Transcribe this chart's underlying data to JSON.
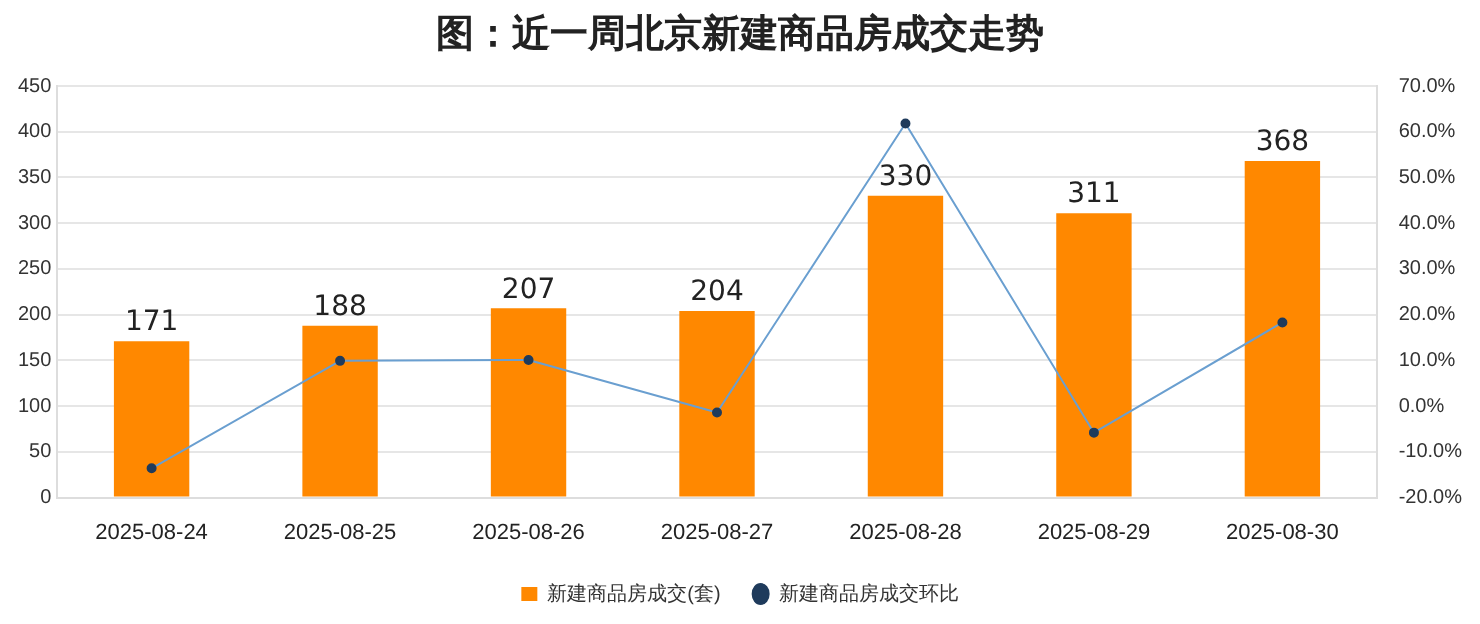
{
  "chart_data": {
    "type": "bar",
    "title": "图：近一周北京新建商品房成交走势",
    "categories": [
      "2025-08-24",
      "2025-08-25",
      "2025-08-26",
      "2025-08-27",
      "2025-08-28",
      "2025-08-29",
      "2025-08-30"
    ],
    "series": [
      {
        "name": "新建商品房成交(套)",
        "color": "#ff8800",
        "values": [
          171,
          188,
          207,
          204,
          330,
          311,
          368
        ],
        "value_labels": [
          "171",
          "188",
          "207",
          "204",
          "330",
          "311",
          "368"
        ]
      },
      {
        "name": "新建商品房成交环比",
        "type": "line",
        "axis": "y2",
        "color": "#6a9fd0",
        "marker": "circle",
        "values": [
          -13.6,
          9.9,
          10.1,
          -1.4,
          61.8,
          -5.8,
          18.3
        ]
      }
    ],
    "ylim": [
      0,
      450
    ],
    "yticks": [
      0,
      50,
      100,
      150,
      200,
      250,
      300,
      350,
      400,
      450
    ],
    "y2lim": [
      -20,
      70
    ],
    "y2ticks": [
      {
        "value": -20,
        "label": "-20.0%"
      },
      {
        "value": -10,
        "label": "-10.0%"
      },
      {
        "value": 0,
        "label": "0.0%"
      },
      {
        "value": 10,
        "label": "10.0%"
      },
      {
        "value": 20,
        "label": "20.0%"
      },
      {
        "value": 30,
        "label": "30.0%"
      },
      {
        "value": 40,
        "label": "40.0%"
      },
      {
        "value": 50,
        "label": "50.0%"
      },
      {
        "value": 60,
        "label": "60.0%"
      },
      {
        "value": 70,
        "label": "70.0%"
      }
    ],
    "grid": "y",
    "legend": "bottom"
  }
}
